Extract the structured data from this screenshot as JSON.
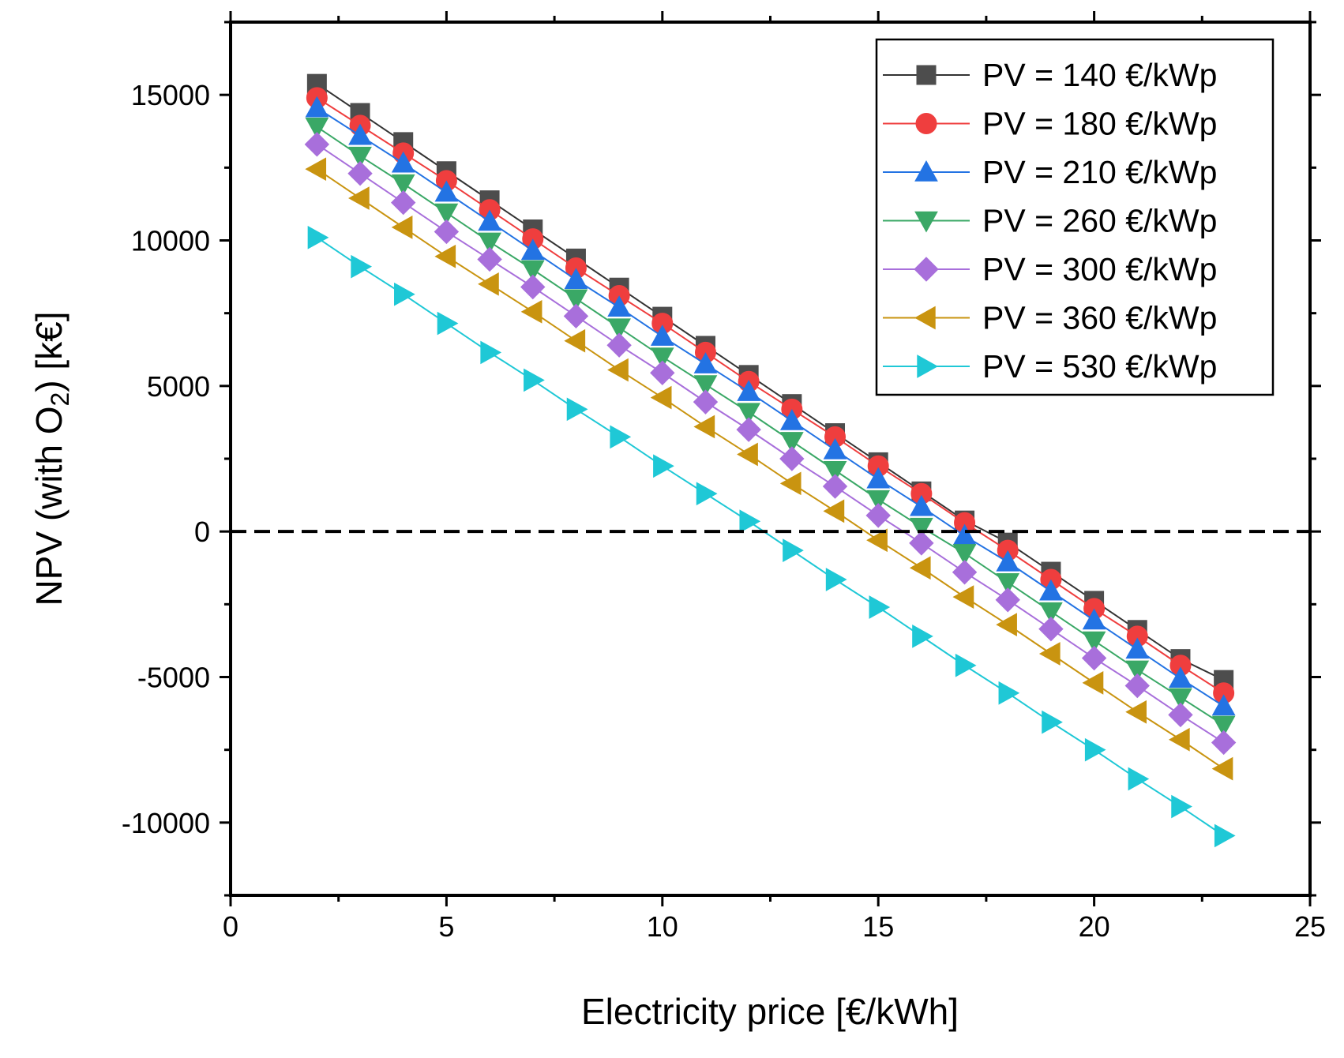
{
  "chart_data": {
    "type": "line",
    "xlabel": "Electricity price [€/kWh]",
    "ylabel_parts": [
      "NPV (with O",
      "2",
      ") [k€]"
    ],
    "xlim": [
      0,
      25
    ],
    "ylim": [
      -12500,
      17500
    ],
    "x_ticks": [
      0,
      5,
      10,
      15,
      20,
      25
    ],
    "y_ticks": [
      -10000,
      -5000,
      0,
      5000,
      10000,
      15000
    ],
    "x_minor_step": 2.5,
    "y_minor_step": 2500,
    "reference_line": {
      "y": 0,
      "style": "dashed",
      "color": "#000000"
    },
    "legend_position": "top-right",
    "x": [
      2,
      3,
      4,
      5,
      6,
      7,
      8,
      9,
      10,
      11,
      12,
      13,
      14,
      15,
      16,
      17,
      18,
      19,
      20,
      21,
      22,
      23
    ],
    "series": [
      {
        "name": "PV = 140 €/kWp",
        "color": "#4d4d4d",
        "line_color": "#333333",
        "marker": "square",
        "values": [
          15380,
          14380,
          13380,
          12380,
          11380,
          10380,
          9380,
          8380,
          7380,
          6380,
          5380,
          4380,
          3380,
          2380,
          1380,
          380,
          -380,
          -1380,
          -2380,
          -3380,
          -4380,
          -5100
        ]
      },
      {
        "name": "PV = 180 €/kWp",
        "color": "#ef3e3e",
        "line_color": "#ef3e3e",
        "marker": "circle",
        "values": [
          14900,
          13950,
          13000,
          12050,
          11050,
          10050,
          9050,
          8100,
          7150,
          6150,
          5150,
          4200,
          3250,
          2250,
          1300,
          300,
          -650,
          -1650,
          -2650,
          -3600,
          -4600,
          -5550
        ]
      },
      {
        "name": "PV = 210 €/kWp",
        "color": "#2373e3",
        "line_color": "#2373e3",
        "marker": "triangle-up",
        "values": [
          14550,
          13600,
          12650,
          11650,
          10650,
          9650,
          8650,
          7700,
          6700,
          5750,
          4800,
          3800,
          2800,
          1800,
          850,
          -150,
          -1050,
          -2050,
          -3050,
          -4050,
          -5050,
          -6000
        ]
      },
      {
        "name": "PV = 260 €/kWp",
        "color": "#3aa866",
        "line_color": "#3aa866",
        "marker": "triangle-down",
        "values": [
          13900,
          12900,
          11950,
          10950,
          9950,
          9000,
          8000,
          7000,
          6000,
          5050,
          4100,
          3100,
          2100,
          1100,
          150,
          -750,
          -1750,
          -2750,
          -3750,
          -4750,
          -5700,
          -6650
        ]
      },
      {
        "name": "PV = 300 €/kWp",
        "color": "#a86fdb",
        "line_color": "#a86fdb",
        "marker": "diamond",
        "values": [
          13300,
          12300,
          11300,
          10300,
          9350,
          8400,
          7400,
          6400,
          5450,
          4450,
          3500,
          2500,
          1550,
          550,
          -400,
          -1400,
          -2350,
          -3350,
          -4350,
          -5300,
          -6300,
          -7250
        ]
      },
      {
        "name": "PV = 360 €/kWp",
        "color": "#c99410",
        "line_color": "#c99410",
        "marker": "triangle-left",
        "values": [
          12450,
          11450,
          10450,
          9450,
          8500,
          7550,
          6550,
          5550,
          4600,
          3600,
          2650,
          1650,
          700,
          -300,
          -1250,
          -2250,
          -3200,
          -4200,
          -5200,
          -6200,
          -7150,
          -8150
        ]
      },
      {
        "name": "PV = 530 €/kWp",
        "color": "#1fc8d6",
        "line_color": "#1fc8d6",
        "marker": "triangle-right",
        "values": [
          10100,
          9100,
          8150,
          7150,
          6150,
          5200,
          4200,
          3250,
          2250,
          1300,
          350,
          -650,
          -1650,
          -2600,
          -3600,
          -4600,
          -5550,
          -6550,
          -7500,
          -8500,
          -9450,
          -10450
        ]
      }
    ]
  }
}
